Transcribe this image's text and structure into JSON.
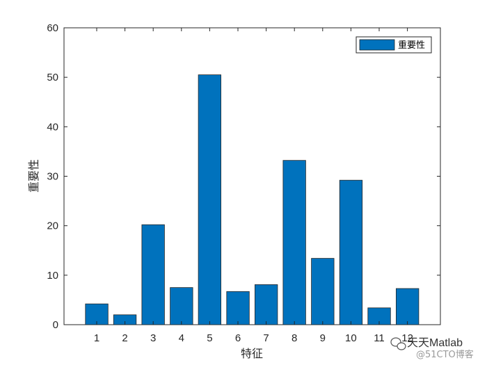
{
  "chart_data": {
    "type": "bar",
    "categories": [
      "1",
      "2",
      "3",
      "4",
      "5",
      "6",
      "7",
      "8",
      "9",
      "10",
      "11",
      "12"
    ],
    "series": [
      {
        "name": "重要性",
        "color": "#0072BD",
        "values": [
          4.2,
          2.0,
          20.2,
          7.5,
          50.5,
          6.7,
          8.1,
          33.2,
          13.4,
          29.2,
          3.4,
          7.3
        ]
      }
    ],
    "title": "",
    "xlabel": "特征",
    "ylabel": "重要性",
    "ylim": [
      0,
      60
    ],
    "yticks": [
      "0",
      "10",
      "20",
      "30",
      "40",
      "50",
      "60"
    ],
    "grid": false,
    "legend_position": "top-right"
  },
  "watermark": {
    "main": "天天Matlab",
    "sub": "@51CTO博客",
    "icon": "wechat-icon"
  }
}
